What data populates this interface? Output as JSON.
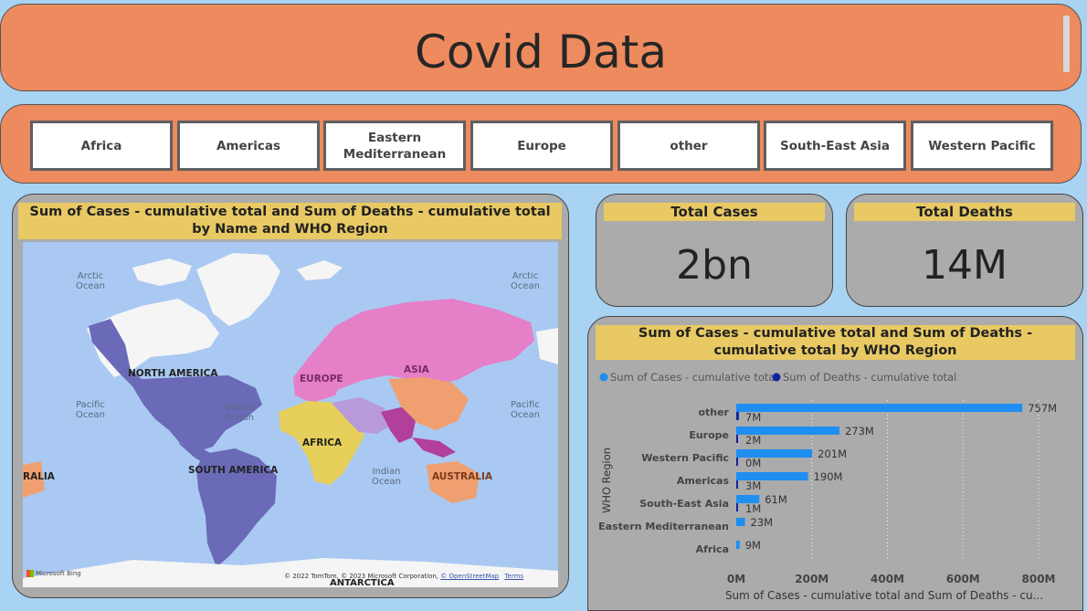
{
  "header": {
    "title": "Covid Data"
  },
  "slicer": {
    "items": [
      "Africa",
      "Americas",
      "Eastern Mediterranean",
      "Europe",
      "other",
      "South-East Asia",
      "Western Pacific"
    ]
  },
  "map_visual": {
    "title": "Sum of Cases - cumulative total and Sum of Deaths - cumulative total by Name and WHO Region",
    "ocean_labels": {
      "arctic_left": "Arctic Ocean",
      "arctic_right": "Arctic Ocean",
      "pacific_left": "Pacific Ocean",
      "pacific_right": "Pacific Ocean",
      "atlantic": "Atlantic Ocean",
      "indian": "Indian Ocean"
    },
    "continent_labels": {
      "north_america": "NORTH AMERICA",
      "south_america": "SOUTH AMERICA",
      "europe": "EUROPE",
      "asia": "ASIA",
      "africa": "AFRICA",
      "australia": "AUSTRALIA",
      "australia_left": "RALIA",
      "antarctica": "ANTARCTICA"
    },
    "bing": "Microsoft Bing",
    "copyright": "© 2022 TomTom, © 2023 Microsoft Corporation,",
    "osm": "© OpenStreetMap",
    "terms": "Terms",
    "colors": {
      "americas": "#6a6ab8",
      "europe": "#e57fc7",
      "africa": "#e6cf5a",
      "em": "#b89ad8",
      "sea": "#b23f9a",
      "wp": "#f0a070",
      "land": "#f5f5f5",
      "ocean": "#a9c9f2"
    }
  },
  "kpi": {
    "cases": {
      "label": "Total Cases",
      "value": "2bn"
    },
    "deaths": {
      "label": "Total Deaths",
      "value": "14M"
    }
  },
  "chart_data": {
    "type": "bar",
    "orientation": "horizontal",
    "title": "Sum of Cases - cumulative total and Sum of Deaths - cumulative total by WHO Region",
    "xlabel": "Sum of Cases - cumulative total and Sum of Deaths - cu...",
    "ylabel": "WHO Region",
    "categories": [
      "other",
      "Europe",
      "Western Pacific",
      "Americas",
      "South-East Asia",
      "Eastern Mediterranean",
      "Africa"
    ],
    "series": [
      {
        "name": "Sum of Cases - cumulative total",
        "values": [
          757,
          273,
          201,
          190,
          61,
          23,
          9
        ],
        "labels": [
          "757M",
          "273M",
          "201M",
          "190M",
          "61M",
          "23M",
          "9M"
        ],
        "color": "#1f8ef1"
      },
      {
        "name": "Sum of Deaths - cumulative total",
        "values": [
          7,
          2,
          0,
          3,
          1,
          null,
          null
        ],
        "labels": [
          "7M",
          "2M",
          "0M",
          "3M",
          "1M",
          "",
          ""
        ],
        "color": "#12239e"
      }
    ],
    "xlim": [
      0,
      800
    ],
    "xticks": [
      "0M",
      "200M",
      "400M",
      "600M",
      "800M"
    ],
    "legend_position": "top-left",
    "grid": true
  }
}
